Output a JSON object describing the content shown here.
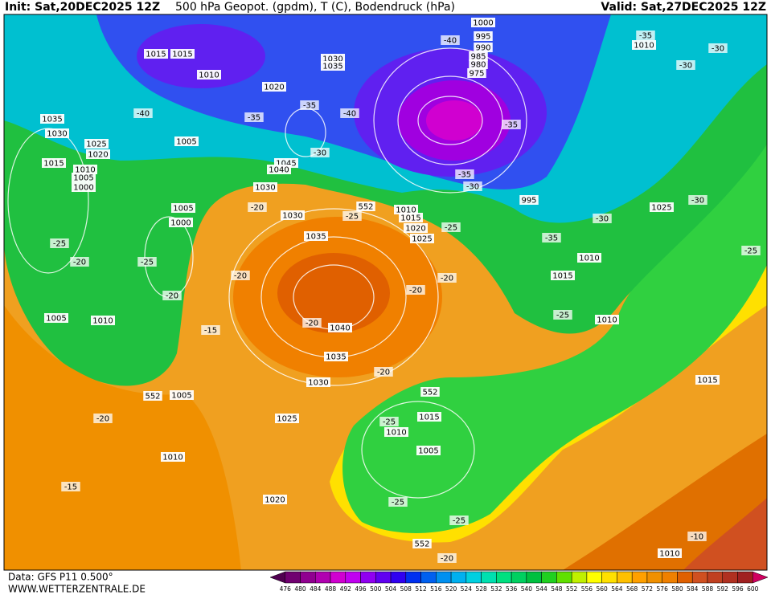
{
  "header": {
    "init": "Init: Sat,20DEC2025 12Z",
    "title": "500 hPa Geopot. (gpdm), T (C), Bodendruck (hPa)",
    "valid": "Valid: Sat,27DEC2025 12Z"
  },
  "footer": {
    "data": "Data: GFS P11 0.500°",
    "site": "WWW.WETTERZENTRALE.DE"
  },
  "colorbar": {
    "ticks": [
      476,
      480,
      484,
      488,
      492,
      496,
      500,
      504,
      508,
      512,
      516,
      520,
      524,
      528,
      532,
      536,
      540,
      544,
      548,
      552,
      556,
      560,
      564,
      568,
      572,
      576,
      580,
      584,
      588,
      592,
      596,
      600
    ],
    "colors": [
      "#500050",
      "#700070",
      "#900090",
      "#b000b0",
      "#d000d0",
      "#c000f0",
      "#9000f0",
      "#6000f0",
      "#3000f0",
      "#0030f0",
      "#0060f0",
      "#0090f0",
      "#00b0f0",
      "#00d0e0",
      "#00e0b0",
      "#00e080",
      "#00d060",
      "#00c040",
      "#20d020",
      "#60e000",
      "#c0f000",
      "#ffff00",
      "#ffe000",
      "#ffc000",
      "#ffa000",
      "#f09000",
      "#f08000",
      "#e06000",
      "#d05020",
      "#c04020",
      "#b03020",
      "#a02020",
      "#d00060"
    ]
  },
  "map_labels": [
    "1015",
    "1015",
    "1010",
    "1030",
    "1035",
    "1020",
    "-40",
    "1035",
    "1030",
    "1025",
    "1020",
    "1005",
    "1015",
    "1010",
    "1005",
    "1000",
    "-35",
    "-35",
    "-40",
    "-30",
    "1045",
    "1040",
    "1030",
    "-40",
    "1000",
    "995",
    "990",
    "985",
    "980",
    "975",
    "-35",
    "1010",
    "-30",
    "-30",
    "-35",
    "-35",
    "-30",
    "995",
    "-30",
    "1025",
    "-30",
    "552",
    "1010",
    "1015",
    "1020",
    "1025",
    "-25",
    "-35",
    "1005",
    "1000",
    "-20",
    "1030",
    "-25",
    "1035",
    "-25",
    "-20",
    "-25",
    "1010",
    "-25",
    "1015",
    "-20",
    "-20",
    "-20",
    "-20",
    "1005",
    "1010",
    "-20",
    "1040",
    "-15",
    "1010",
    "-25",
    "1035",
    "-20",
    "1030",
    "1015",
    "552",
    "1005",
    "552",
    "-20",
    "1025",
    "-25",
    "1010",
    "1015",
    "1005",
    "1010",
    "-15",
    "1020",
    "-25",
    "-25",
    "552",
    "-20",
    "-10",
    "1010"
  ]
}
